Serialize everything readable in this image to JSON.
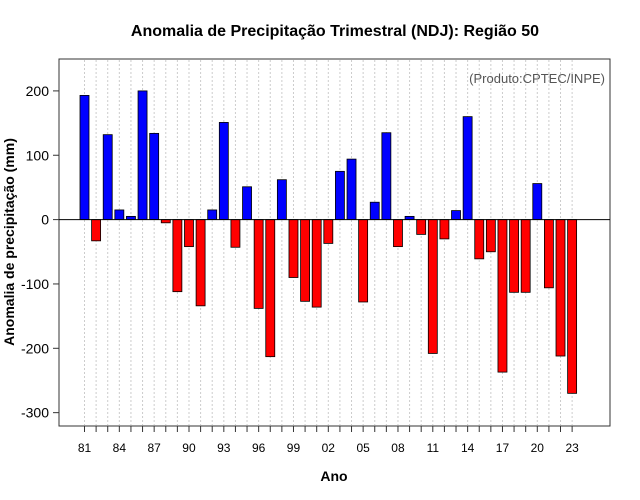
{
  "chart_data": {
    "type": "bar",
    "title": "Anomalia de Precipitação Trimestral (NDJ): Região 50",
    "xlabel": "Ano",
    "ylabel": "Anomalia de precipitação (mm)",
    "credit": "(Produto:CPTEC/INPE)",
    "years": [
      1981,
      1982,
      1983,
      1984,
      1985,
      1986,
      1987,
      1988,
      1989,
      1990,
      1991,
      1992,
      1993,
      1994,
      1995,
      1996,
      1997,
      1998,
      1999,
      2000,
      2001,
      2002,
      2003,
      2004,
      2005,
      2006,
      2007,
      2008,
      2009,
      2010,
      2011,
      2012,
      2013,
      2014,
      2015,
      2016,
      2017,
      2018,
      2019,
      2020,
      2021,
      2022,
      2023
    ],
    "values": [
      193,
      -33,
      132,
      15,
      5,
      200,
      134,
      -5,
      -112,
      -42,
      -134,
      15,
      151,
      -43,
      51,
      -138,
      -213,
      62,
      -90,
      -127,
      -136,
      -37,
      75,
      94,
      -128,
      27,
      135,
      -42,
      5,
      -23,
      -208,
      -30,
      14,
      160,
      -61,
      -50,
      -237,
      -113,
      -113,
      56,
      -106,
      -212,
      -270
    ],
    "ylim": [
      -320,
      250
    ],
    "yticks": [
      -300,
      -200,
      -100,
      0,
      100,
      200
    ],
    "ytick_labels": [
      "-300",
      "-200",
      "-100",
      "0",
      "100",
      "200"
    ],
    "xtick_labels": [
      "81",
      "84",
      "87",
      "90",
      "93",
      "96",
      "99",
      "02",
      "05",
      "08",
      "11",
      "14",
      "17",
      "20",
      "23"
    ],
    "xtick_years": [
      1981,
      1984,
      1987,
      1990,
      1993,
      1996,
      1999,
      2002,
      2005,
      2008,
      2011,
      2014,
      2017,
      2020,
      2023
    ],
    "colors": {
      "positive": "#0000ff",
      "negative": "#ff0000",
      "grid": "#cccccc",
      "zero_line": "#000000"
    }
  }
}
